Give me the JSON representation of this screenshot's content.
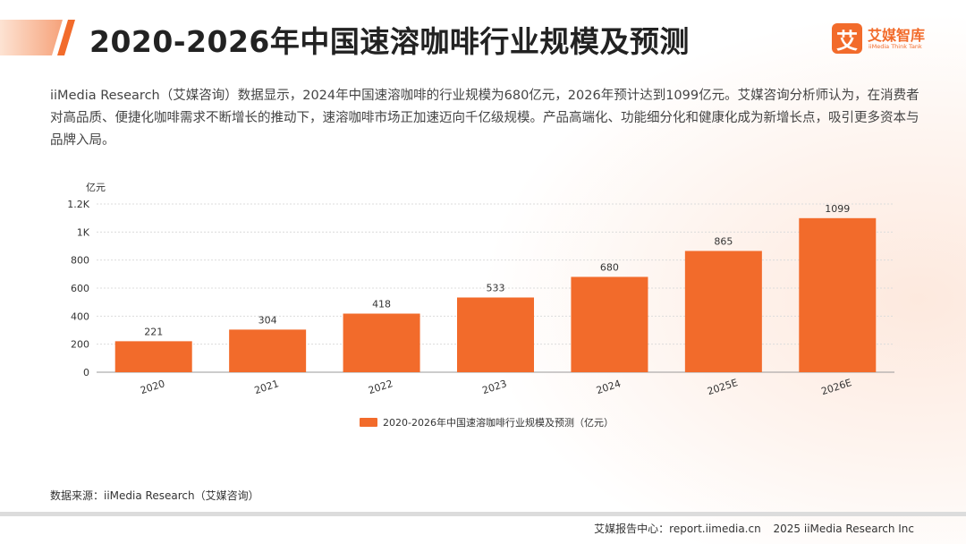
{
  "header": {
    "title": "2020-2026年中国速溶咖啡行业规模及预测"
  },
  "logo": {
    "mark": "艾",
    "name": "艾媒智库",
    "subtitle": "iiMedia Think Tank"
  },
  "description": "iiMedia Research（艾媒咨询）数据显示，2024年中国速溶咖啡的行业规模为680亿元，2026年预计达到1099亿元。艾媒咨询分析师认为，在消费者对高品质、便捷化咖啡需求不断增长的推动下，速溶咖啡市场正加速迈向千亿级规模。产品高端化、功能细分化和健康化成为新增长点，吸引更多资本与品牌入局。",
  "colors": {
    "accent": "#f26b2b",
    "bar": "#f26b2b"
  },
  "chart_data": {
    "type": "bar",
    "categories": [
      "2020",
      "2021",
      "2022",
      "2023",
      "2024",
      "2025E",
      "2026E"
    ],
    "series": [
      {
        "name": "2020-2026年中国速溶咖啡行业规模及预测（亿元）",
        "values": [
          221,
          304,
          418,
          533,
          680,
          865,
          1099
        ]
      }
    ],
    "ylabel": "亿元",
    "ylim": [
      0,
      1200
    ],
    "yticks": [
      0,
      200,
      400,
      600,
      800,
      1000,
      1200
    ],
    "ytick_labels": [
      "0",
      "200",
      "400",
      "600",
      "800",
      "1K",
      "1.2K"
    ],
    "grid": true,
    "legend": "bottom"
  },
  "source": "数据来源：iiMedia Research（艾媒咨询）",
  "footer": {
    "report": "艾媒报告中心：report.iimedia.cn",
    "copyright": "2025 iiMedia Research Inc"
  }
}
